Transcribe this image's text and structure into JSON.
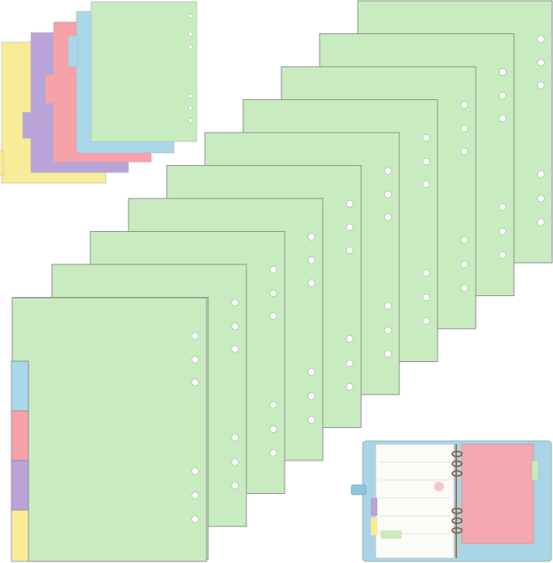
{
  "product": {
    "sheet_color": "#c8ecc0",
    "sheet_edge": "#8e8e8e",
    "hole_color": "#ffffff",
    "tab_colors": [
      "#a9d8ea",
      "#f7a1a8",
      "#b9a3d8",
      "#f8ec99"
    ],
    "color_pack_colors": [
      "#f8ec99",
      "#b9a3d8",
      "#f7a1a8",
      "#a9d8ea",
      "#c8ecc0"
    ],
    "binder_color": "#a9d5e6",
    "planner_page_color": "#fbfbf8",
    "pink_insert_color": "#f4a9b0",
    "ring_color": "#8b5a3c"
  }
}
